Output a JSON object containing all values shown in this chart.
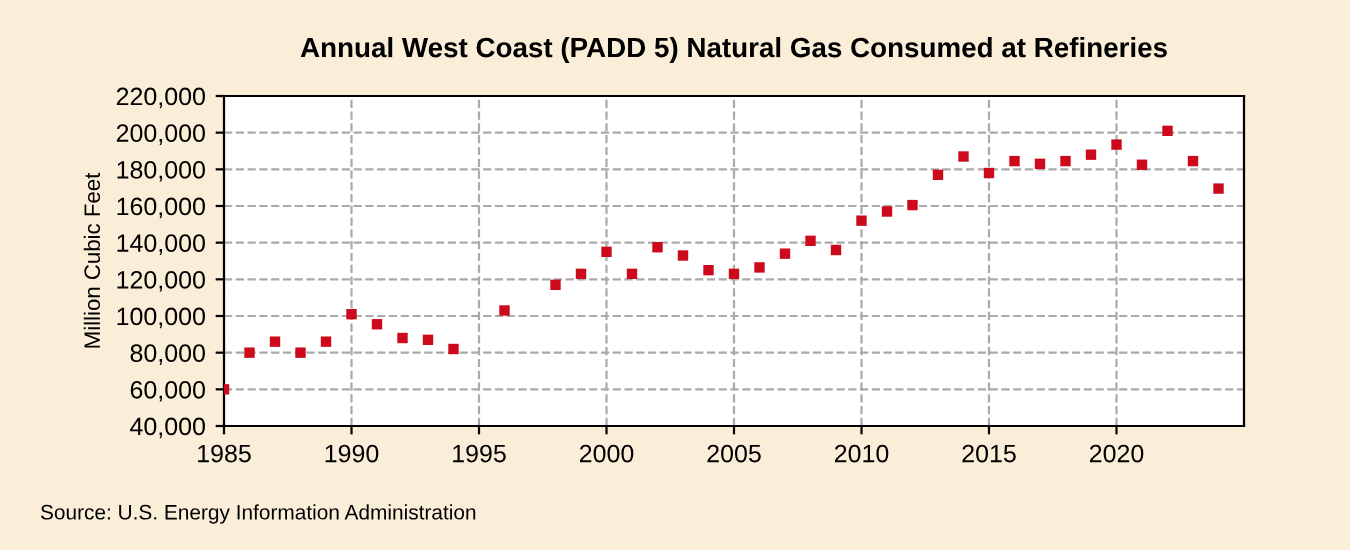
{
  "chart_data": {
    "type": "scatter",
    "title": "Annual West Coast (PADD 5) Natural Gas Consumed at Refineries",
    "ylabel": "Million Cubic Feet",
    "annotations": [
      "Source: U.S. Energy Information Administration"
    ],
    "x": [
      1985,
      1986,
      1987,
      1988,
      1989,
      1990,
      1991,
      1992,
      1993,
      1994,
      1996,
      1998,
      1999,
      2000,
      2001,
      2002,
      2003,
      2004,
      2005,
      2006,
      2007,
      2008,
      2009,
      2010,
      2011,
      2012,
      2013,
      2014,
      2015,
      2016,
      2017,
      2018,
      2019,
      2020,
      2021,
      2022,
      2023,
      2024
    ],
    "series": [
      {
        "color": "#cc0a1c",
        "values": [
          60000,
          80000,
          86000,
          80000,
          86000,
          101000,
          95500,
          88000,
          87000,
          82000,
          103000,
          117000,
          123000,
          135000,
          123000,
          137500,
          133000,
          125000,
          123000,
          126500,
          134000,
          141000,
          136000,
          152000,
          157000,
          160500,
          177000,
          187000,
          178000,
          184500,
          183000,
          184500,
          188000,
          193500,
          182500,
          201000,
          184500,
          169500
        ]
      }
    ],
    "xlim": [
      1985,
      2025
    ],
    "xticks": [
      1985,
      1990,
      1995,
      2000,
      2005,
      2010,
      2015,
      2020
    ],
    "ylim": [
      40000,
      220000
    ],
    "yticks": [
      {
        "value": 40000,
        "label": "40,000"
      },
      {
        "value": 60000,
        "label": "60,000"
      },
      {
        "value": 80000,
        "label": "80,000"
      },
      {
        "value": 100000,
        "label": "100,000"
      },
      {
        "value": 120000,
        "label": "120,000"
      },
      {
        "value": 140000,
        "label": "140,000"
      },
      {
        "value": 160000,
        "label": "160,000"
      },
      {
        "value": 180000,
        "label": "180,000"
      },
      {
        "value": 200000,
        "label": "200,000"
      },
      {
        "value": 220000,
        "label": "220,000"
      }
    ],
    "grid": true,
    "marker": "square"
  }
}
